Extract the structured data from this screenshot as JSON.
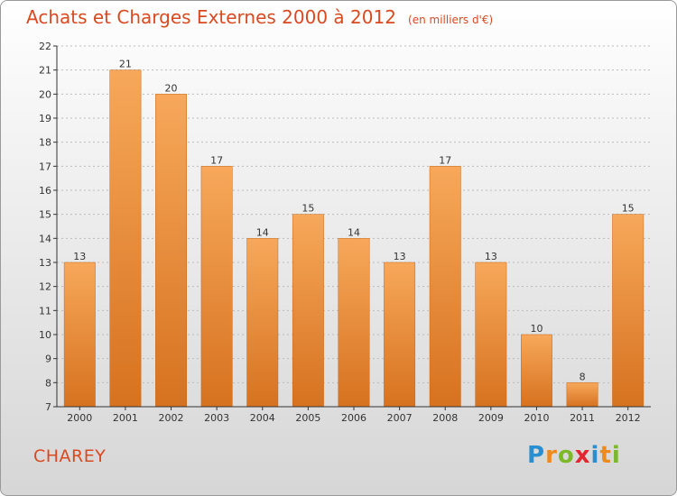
{
  "header": {
    "title": "Achats et Charges Externes 2000 à 2012",
    "unit": "(en milliers d'€)"
  },
  "footer": {
    "commune": "CHAREY",
    "logo_text": "Proxiti",
    "logo_letters": [
      {
        "ch": "P",
        "color": "#2a8fd0"
      },
      {
        "ch": "r",
        "color": "#f08a1c"
      },
      {
        "ch": "o",
        "color": "#7bb928"
      },
      {
        "ch": "x",
        "color": "#e3262f"
      },
      {
        "ch": "i",
        "color": "#2a8fd0"
      },
      {
        "ch": "t",
        "color": "#f08a1c"
      },
      {
        "ch": "i",
        "color": "#7bb928"
      }
    ]
  },
  "colors": {
    "title": "#d94a21",
    "bar_light": "#f7a85a",
    "bar_dark": "#d6721f",
    "grid": "#bbbbbb",
    "axis": "#333333"
  },
  "chart_data": {
    "type": "bar",
    "title": "Achats et Charges Externes 2000 à 2012",
    "subtitle": "(en milliers d'€)",
    "categories": [
      "2000",
      "2001",
      "2002",
      "2003",
      "2004",
      "2005",
      "2006",
      "2007",
      "2008",
      "2009",
      "2010",
      "2011",
      "2012"
    ],
    "values": [
      13,
      21,
      20,
      17,
      14,
      15,
      14,
      13,
      17,
      13,
      10,
      8,
      15
    ],
    "xlabel": "",
    "ylabel": "",
    "ylim": [
      7,
      22
    ],
    "yticks": [
      7,
      8,
      9,
      10,
      11,
      12,
      13,
      14,
      15,
      16,
      17,
      18,
      19,
      20,
      21,
      22
    ],
    "grid": "horizontal dashed",
    "legend": "none"
  }
}
